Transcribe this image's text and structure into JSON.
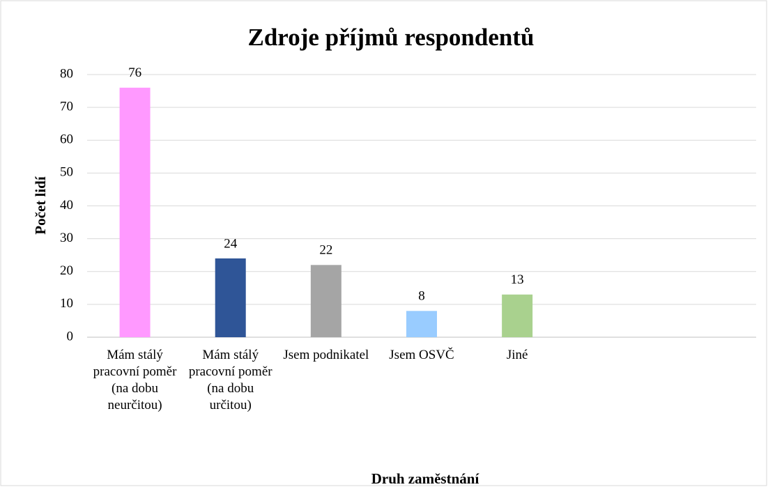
{
  "chart_data": {
    "type": "bar",
    "title": "Zdroje příjmů respondentů",
    "x_label": "Druh zaměstnání",
    "y_label": "Počet lidí",
    "categories": [
      "Mám stálý pracovní poměr (na dobu neurčitou)",
      "Mám stálý pracovní poměr (na dobu určitou)",
      "Jsem podnikatel",
      "Jsem OSVČ",
      "Jiné",
      null,
      null
    ],
    "values": [
      76,
      24,
      22,
      8,
      13,
      null,
      null
    ],
    "colors": [
      "#ff99ff",
      "#2f5597",
      "#a5a5a5",
      "#99ccff",
      "#a9d18e",
      null,
      null
    ],
    "ylim": [
      0,
      80
    ],
    "yticks": [
      0,
      10,
      20,
      30,
      40,
      50,
      60,
      70,
      80
    ],
    "grid": true
  }
}
